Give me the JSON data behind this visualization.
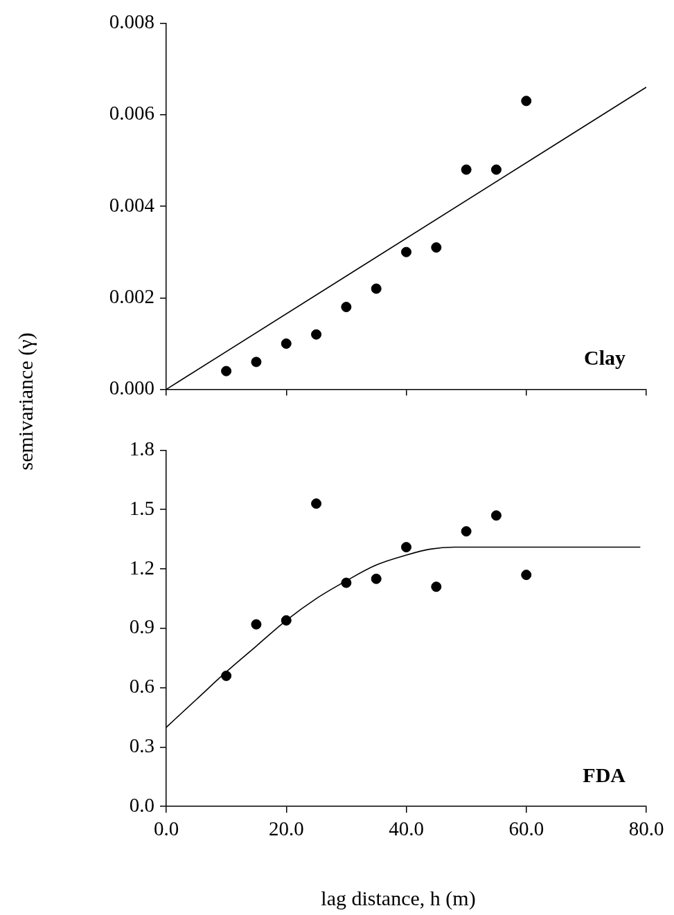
{
  "chart_data": [
    {
      "type": "scatter",
      "ylabel": "semivariance (γ)",
      "xlim": [
        0,
        80
      ],
      "xticks": [
        {
          "value": 0,
          "label": null
        },
        {
          "value": 20,
          "label": null
        },
        {
          "value": 40,
          "label": null
        },
        {
          "value": 60,
          "label": null
        },
        {
          "value": 80,
          "label": null
        }
      ],
      "ylim": [
        0,
        0.008
      ],
      "yticks": [
        {
          "value": 0,
          "label": "0.000"
        },
        {
          "value": 0.002,
          "label": "0.002"
        },
        {
          "value": 0.004,
          "label": "0.004"
        },
        {
          "value": 0.006,
          "label": "0.006"
        },
        {
          "value": 0.008,
          "label": "0.008"
        }
      ],
      "tick_labels": "y",
      "annotations": [
        "Clay"
      ],
      "series": [
        {
          "marker": "circle",
          "color": "#000000",
          "x": [
            10,
            15,
            20,
            25,
            30,
            35,
            40,
            45,
            50,
            55,
            60
          ],
          "values": [
            0.0004,
            0.0006,
            0.001,
            0.0012,
            0.0018,
            0.0022,
            0.003,
            0.0031,
            0.0048,
            0.0048,
            0.0063
          ]
        },
        {
          "type": "line",
          "marker": "none",
          "color": "#000000",
          "x": [
            0,
            80
          ],
          "values": [
            0,
            0.0066
          ]
        }
      ]
    },
    {
      "type": "scatter",
      "xlabel": "lag distance, h (m)",
      "xlim": [
        0,
        80
      ],
      "xticks": [
        {
          "value": 0,
          "label": "0.0"
        },
        {
          "value": 20,
          "label": "20.0"
        },
        {
          "value": 40,
          "label": "40.0"
        },
        {
          "value": 60,
          "label": "60.0"
        },
        {
          "value": 80,
          "label": "80.0"
        }
      ],
      "ylim": [
        0,
        1.8
      ],
      "yticks": [
        {
          "value": 0,
          "label": "0.0"
        },
        {
          "value": 0.3,
          "label": "0.3"
        },
        {
          "value": 0.6,
          "label": "0.6"
        },
        {
          "value": 0.9,
          "label": "0.9"
        },
        {
          "value": 1.2,
          "label": "1.2"
        },
        {
          "value": 1.5,
          "label": "1.5"
        },
        {
          "value": 1.8,
          "label": "1.8"
        }
      ],
      "annotations": [
        "FDA"
      ],
      "series": [
        {
          "marker": "circle",
          "color": "#000000",
          "x": [
            10,
            15,
            20,
            25,
            30,
            35,
            40,
            45,
            50,
            55,
            60
          ],
          "values": [
            0.66,
            0.92,
            0.94,
            1.53,
            1.13,
            1.15,
            1.31,
            1.11,
            1.39,
            1.47,
            1.17
          ]
        },
        {
          "type": "line",
          "marker": "none",
          "color": "#000000",
          "x": [
            0,
            5,
            10,
            15,
            20,
            25,
            30,
            35,
            40,
            44,
            48,
            79
          ],
          "values": [
            0.4,
            0.54,
            0.68,
            0.81,
            0.94,
            1.05,
            1.14,
            1.22,
            1.27,
            1.3,
            1.31,
            1.31
          ]
        }
      ]
    }
  ]
}
